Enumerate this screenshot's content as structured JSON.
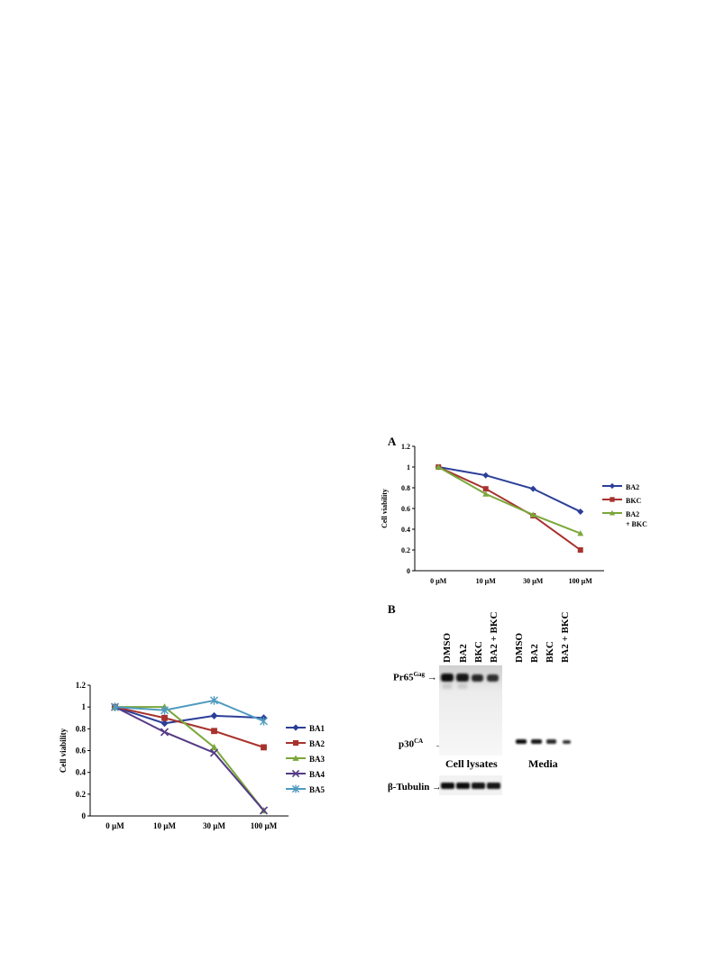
{
  "chart_data": [
    {
      "type": "line",
      "categories": [
        "0 µM",
        "10 µM",
        "30 µM",
        "100 µM"
      ],
      "ylabel": "Cell viability",
      "xlabel": "",
      "ylim": [
        0,
        1.2
      ],
      "yticks": [
        "0",
        "0.2",
        "0.4",
        "0.6",
        "0.8",
        "1",
        "1.2"
      ],
      "grid": false,
      "legend": "right",
      "series": [
        {
          "name": "BA1",
          "values": [
            1.0,
            0.85,
            0.92,
            0.9
          ],
          "color": "#2b3f99",
          "marker": "diamond"
        },
        {
          "name": "BA2",
          "values": [
            1.0,
            0.9,
            0.78,
            0.63
          ],
          "color": "#a8322d",
          "marker": "square"
        },
        {
          "name": "BA3",
          "values": [
            1.0,
            1.0,
            0.63,
            0.05
          ],
          "color": "#7ba73a",
          "marker": "triangle"
        },
        {
          "name": "BA4",
          "values": [
            1.0,
            0.77,
            0.58,
            0.05
          ],
          "color": "#553a86",
          "marker": "x"
        },
        {
          "name": "BA5",
          "values": [
            1.0,
            0.97,
            1.06,
            0.87
          ],
          "color": "#4f9bc0",
          "marker": "star"
        }
      ]
    },
    {
      "type": "line",
      "panel": "A",
      "categories": [
        "0 µM",
        "10 µM",
        "30 µM",
        "100 µM"
      ],
      "ylabel": "Cell viability",
      "xlabel": "",
      "ylim": [
        0,
        1.2
      ],
      "yticks": [
        "0",
        "0.2",
        "0.4",
        "0.6",
        "0.8",
        "1",
        "1.2"
      ],
      "grid": false,
      "legend": "right",
      "series": [
        {
          "name": "BA2",
          "values": [
            1.0,
            0.92,
            0.79,
            0.57
          ],
          "color": "#2b3f99",
          "marker": "diamond"
        },
        {
          "name": "BKC",
          "values": [
            1.0,
            0.79,
            0.53,
            0.2
          ],
          "color": "#a8322d",
          "marker": "square"
        },
        {
          "name": "BA2\n+ BKC",
          "values": [
            1.0,
            0.74,
            0.54,
            0.36
          ],
          "color": "#7ba73a",
          "marker": "triangle"
        }
      ]
    }
  ],
  "blot": {
    "panel": "B",
    "lanes_left": [
      "DMSO",
      "BA2",
      "BKC",
      "BA2 + BKC"
    ],
    "lanes_right": [
      "DMSO",
      "BA2",
      "BKC",
      "BA2 + BKC"
    ],
    "pr65_main": "Pr65",
    "pr65_sup": "Gag",
    "p30_main": "p30",
    "p30_sup": "CA",
    "tubulin": "β-Tubulin",
    "caption_left": "Cell lysates",
    "caption_right": "Media",
    "arrow": "→"
  }
}
